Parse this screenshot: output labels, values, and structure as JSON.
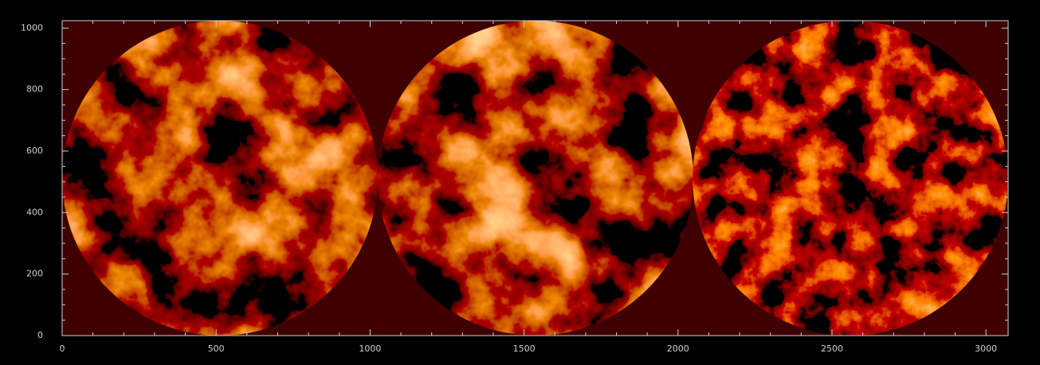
{
  "chart_data": {
    "type": "image",
    "xlim": [
      0,
      3072
    ],
    "ylim": [
      0,
      1024
    ],
    "xticks": [
      0,
      500,
      1000,
      1500,
      2000,
      2500,
      3000
    ],
    "yticks": [
      0,
      200,
      400,
      600,
      800,
      1000
    ]
  }
}
